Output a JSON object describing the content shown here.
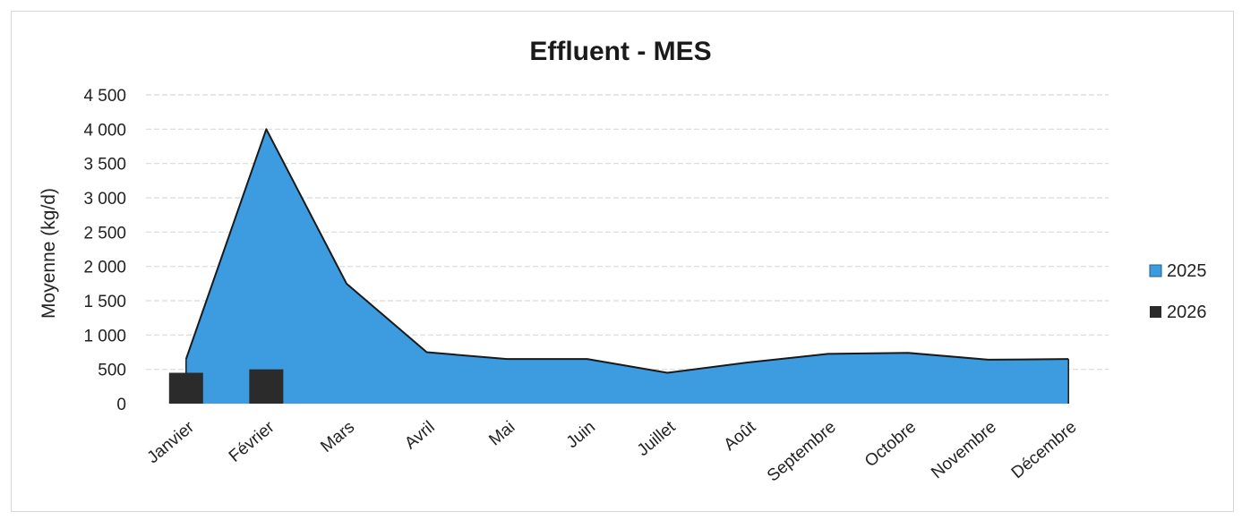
{
  "chart_data": {
    "type": "area",
    "title": "Effluent - MES",
    "xlabel": "",
    "ylabel": "Moyenne (kg/d)",
    "categories": [
      "Janvier",
      "Février",
      "Mars",
      "Avril",
      "Mai",
      "Juin",
      "Juillet",
      "Août",
      "Septembre",
      "Octobre",
      "Novembre",
      "Décembre"
    ],
    "ylim": [
      0,
      4500
    ],
    "yticks": [
      0,
      500,
      1000,
      1500,
      2000,
      2500,
      3000,
      3500,
      4000,
      4500
    ],
    "ytick_labels": [
      "0",
      "500",
      "1 000",
      "1 500",
      "2 000",
      "2 500",
      "3 000",
      "3 500",
      "4 000",
      "4 500"
    ],
    "grid": true,
    "legend_position": "right",
    "series": [
      {
        "name": "2025",
        "type": "area",
        "color": "#3d9be0",
        "outline_color": "#1a1a1a",
        "values": [
          650,
          4000,
          1750,
          750,
          650,
          650,
          450,
          600,
          725,
          740,
          640,
          650
        ]
      },
      {
        "name": "2026",
        "type": "bar",
        "color": "#2b2b2b",
        "values": [
          450,
          500,
          null,
          null,
          null,
          null,
          null,
          null,
          null,
          null,
          null,
          null
        ]
      }
    ],
    "legend": [
      "2025",
      "2026"
    ]
  }
}
